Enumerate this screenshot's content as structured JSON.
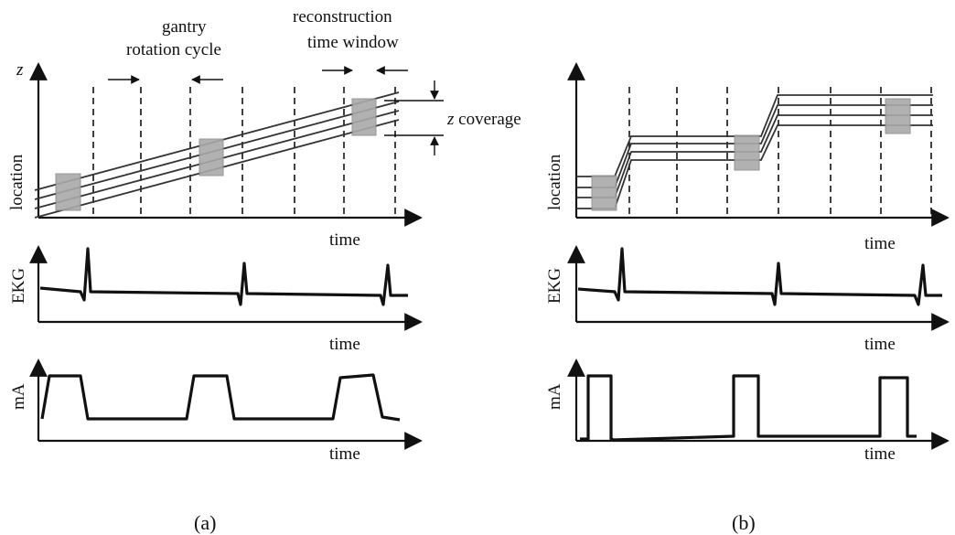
{
  "panel_a": {
    "caption": "(a)",
    "z_label": "z",
    "location_label": "location",
    "time_label_1": "time",
    "ekg_label": "EKG",
    "time_label_2": "time",
    "ma_label": "mA",
    "time_label_3": "time",
    "gantry_line1": "gantry",
    "gantry_line2": "rotation cycle",
    "recon_line1": "reconstruction",
    "recon_line2": "time window",
    "zcov_italic": "z",
    "zcov_rest": " coverage"
  },
  "panel_b": {
    "caption": "(b)",
    "location_label": "location",
    "time_label_1": "time",
    "ekg_label": "EKG",
    "time_label_2": "time",
    "ma_label": "mA",
    "time_label_3": "time"
  },
  "colors": {
    "ink": "#111111",
    "window_fill": "#a9a9a9"
  }
}
